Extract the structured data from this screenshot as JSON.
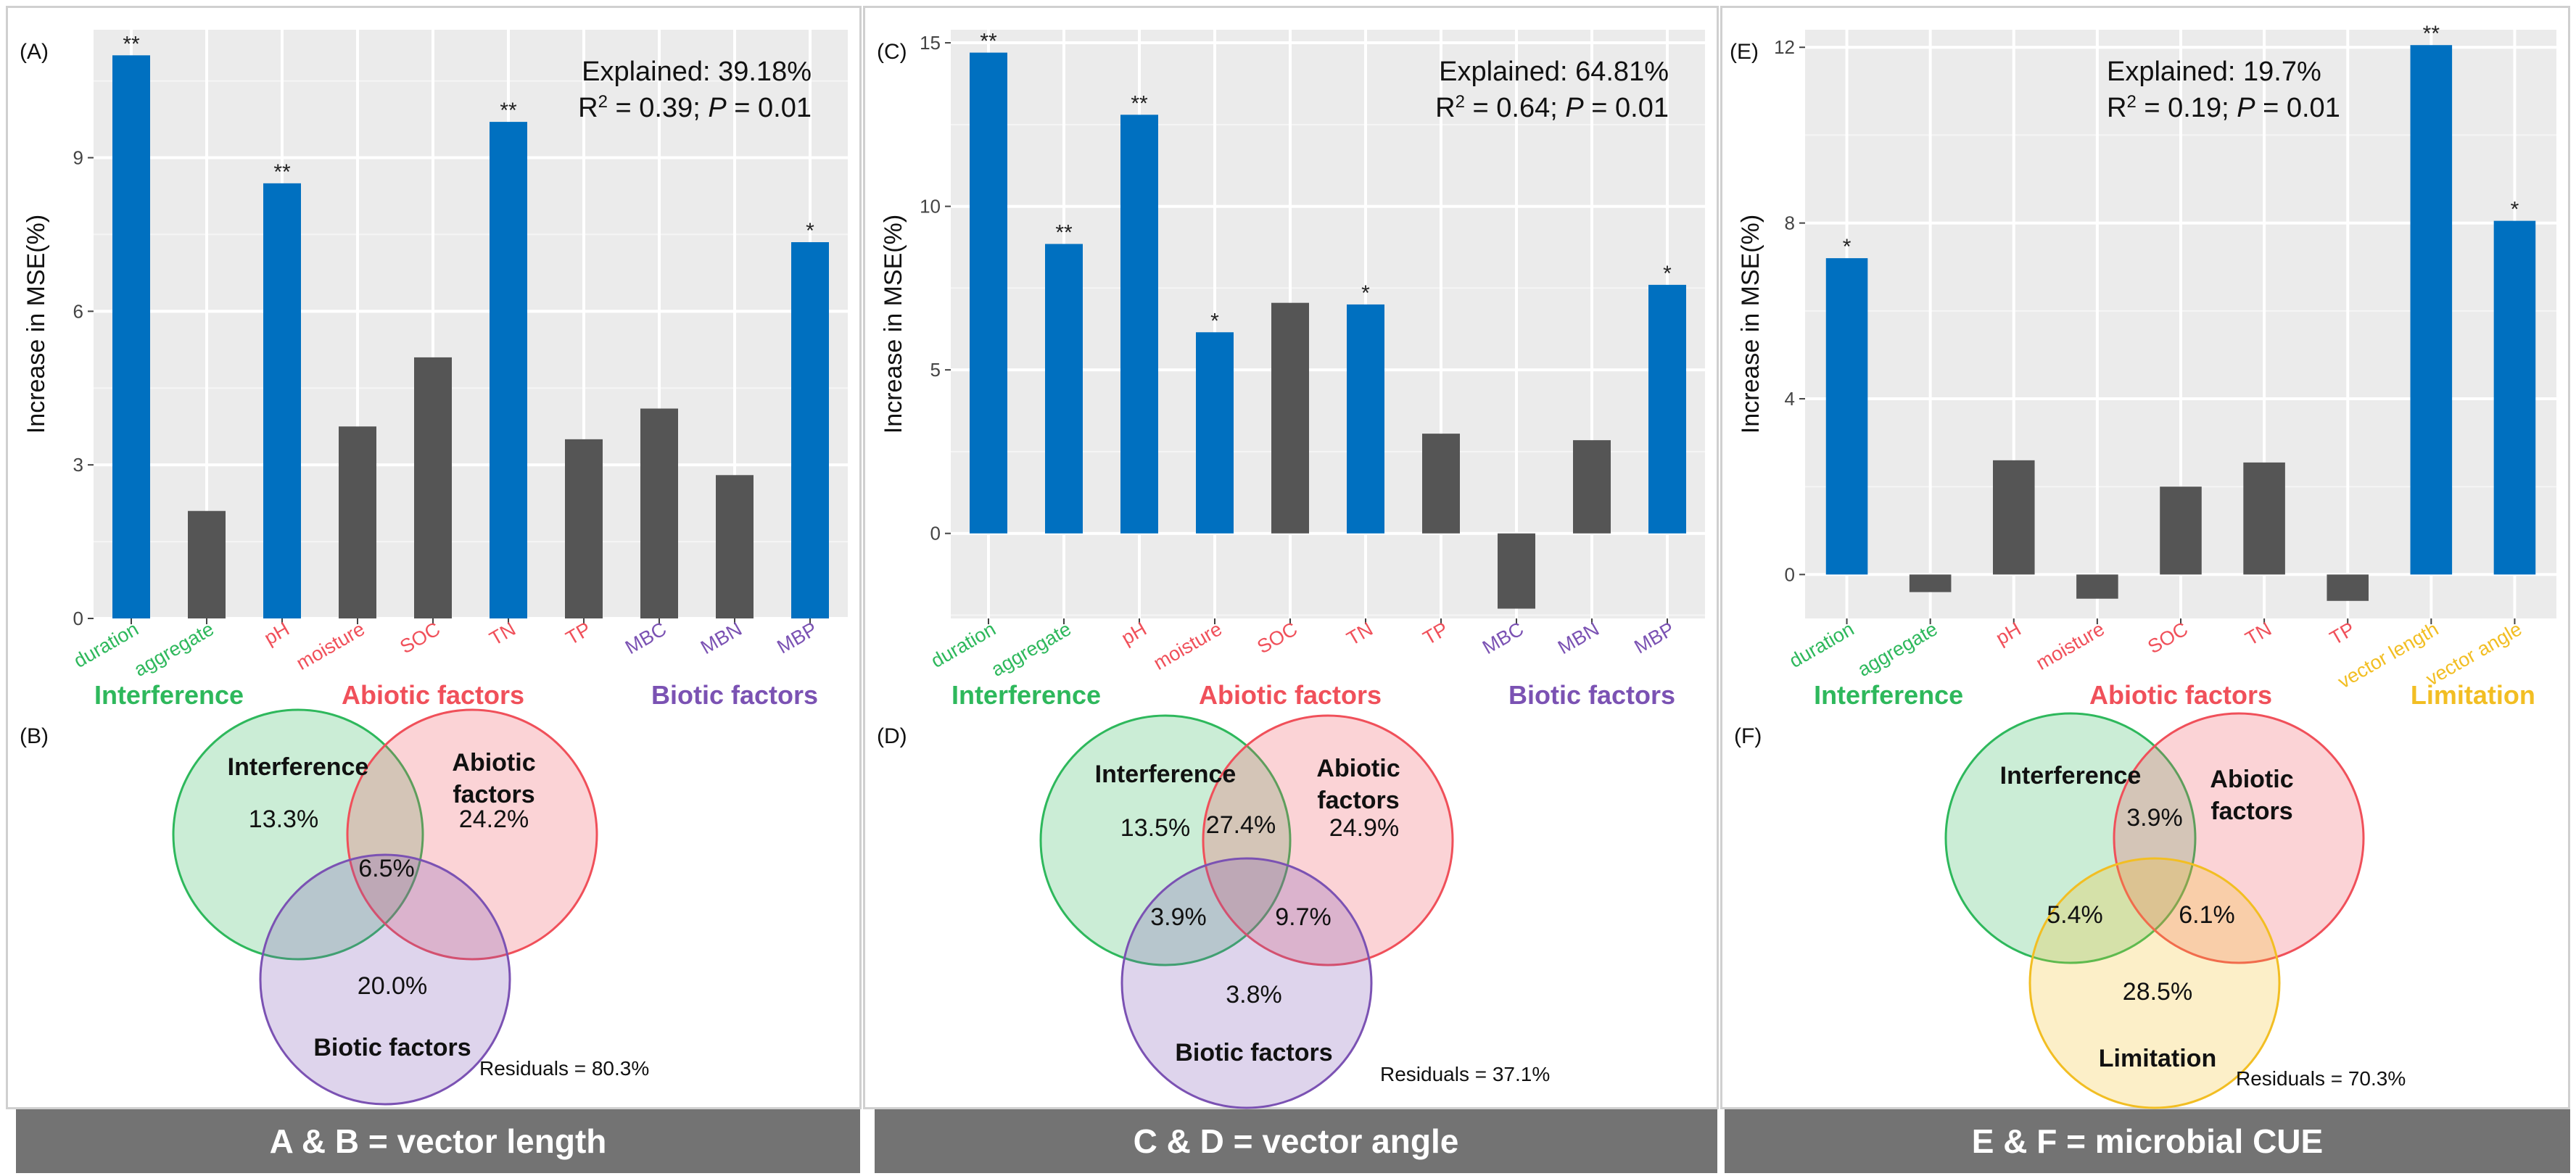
{
  "colors": {
    "highlight": "#0070C0",
    "nonsig": "#555555",
    "panel_bg": "#EBEBEB",
    "grid": "#FFFFFF",
    "interference": "#2EB85C",
    "abiotic": "#F0505A",
    "biotic": "#7B52B3",
    "limitation": "#F2BE23",
    "footer": "#737373"
  },
  "panels": [
    {
      "bar_label": "(A)",
      "venn_label": "(B)",
      "explained": "Explained: 39.18%",
      "r2": "0.39",
      "p": "0.01",
      "footer": "A & B = vector length",
      "venn": {
        "sets": [
          "Interference",
          "Abiotic factors",
          "Biotic factors"
        ],
        "regions": {
          "only1": "13.3%",
          "only2": "24.2%",
          "only3": "20.0%",
          "all": "6.5%"
        },
        "residuals": "Residuals =  80.3%"
      }
    },
    {
      "bar_label": "(C)",
      "venn_label": "(D)",
      "explained": "Explained: 64.81%",
      "r2": "0.64",
      "p": "0.01",
      "footer": "C & D = vector angle",
      "venn": {
        "sets": [
          "Interference",
          "Abiotic factors",
          "Biotic factors"
        ],
        "regions": {
          "only1": "13.5%",
          "only2": "24.9%",
          "only3": "3.8%",
          "p12": "27.4%",
          "p13": "3.9%",
          "p23": "9.7%"
        },
        "residuals": "Residuals =  37.1%"
      }
    },
    {
      "bar_label": "(E)",
      "venn_label": "(F)",
      "explained": "Explained: 19.7%",
      "r2": "0.19",
      "p": "0.01",
      "footer": "E & F = microbial CUE",
      "venn": {
        "sets": [
          "Interference",
          "Abiotic factors",
          "Limitation"
        ],
        "regions": {
          "p12": "3.9%",
          "p13": "5.4%",
          "p23": "6.1%",
          "only3": "28.5%"
        },
        "residuals": "Residuals =  70.3%"
      }
    }
  ],
  "chart_data": [
    {
      "type": "bar",
      "ylabel": "Increase in MSE(%)",
      "ylim": [
        0,
        11.5
      ],
      "yticks": [
        0,
        3,
        6,
        9
      ],
      "categories": [
        "duration",
        "aggregate",
        "pH",
        "moisture",
        "SOC",
        "TN",
        "TP",
        "MBC",
        "MBN",
        "MBP"
      ],
      "groups": [
        "Interference",
        "Interference",
        "Abiotic factors",
        "Abiotic factors",
        "Abiotic factors",
        "Abiotic factors",
        "Abiotic factors",
        "Biotic factors",
        "Biotic factors",
        "Biotic factors"
      ],
      "group_labels": [
        "Interference",
        "Abiotic factors",
        "Biotic factors"
      ],
      "values": [
        11.0,
        2.1,
        8.5,
        3.75,
        5.1,
        9.7,
        3.5,
        4.1,
        2.8,
        7.35
      ],
      "significance": [
        "**",
        "",
        "**",
        "",
        "",
        "**",
        "",
        "",
        "",
        "*"
      ]
    },
    {
      "type": "bar",
      "ylabel": "Increase in MSE(%)",
      "ylim": [
        -2.6,
        15.4
      ],
      "yticks": [
        0,
        5,
        10,
        15
      ],
      "categories": [
        "duration",
        "aggregate",
        "pH",
        "moisture",
        "SOC",
        "TN",
        "TP",
        "MBC",
        "MBN",
        "MBP"
      ],
      "groups": [
        "Interference",
        "Interference",
        "Abiotic factors",
        "Abiotic factors",
        "Abiotic factors",
        "Abiotic factors",
        "Abiotic factors",
        "Biotic factors",
        "Biotic factors",
        "Biotic factors"
      ],
      "group_labels": [
        "Interference",
        "Abiotic factors",
        "Biotic factors"
      ],
      "values": [
        14.7,
        8.85,
        12.8,
        6.15,
        7.05,
        7.0,
        3.05,
        -2.3,
        2.85,
        7.6
      ],
      "significance": [
        "**",
        "**",
        "**",
        "*",
        "",
        "*",
        "",
        "",
        "",
        "*"
      ]
    },
    {
      "type": "bar",
      "ylabel": "Increase in MSE(%)",
      "ylim": [
        -1.0,
        12.4
      ],
      "yticks": [
        0,
        4,
        8,
        12
      ],
      "categories": [
        "duration",
        "aggregate",
        "pH",
        "moisture",
        "SOC",
        "TN",
        "TP",
        "vector length",
        "vector angle"
      ],
      "groups": [
        "Interference",
        "Interference",
        "Abiotic factors",
        "Abiotic factors",
        "Abiotic factors",
        "Abiotic factors",
        "Abiotic factors",
        "Limitation",
        "Limitation"
      ],
      "group_labels": [
        "Interference",
        "Abiotic factors",
        "Limitation"
      ],
      "values": [
        7.2,
        -0.4,
        2.6,
        -0.55,
        2.0,
        2.55,
        -0.6,
        12.05,
        8.05
      ],
      "significance": [
        "*",
        "",
        "",
        "",
        "",
        "",
        "",
        "**",
        "*"
      ]
    }
  ]
}
